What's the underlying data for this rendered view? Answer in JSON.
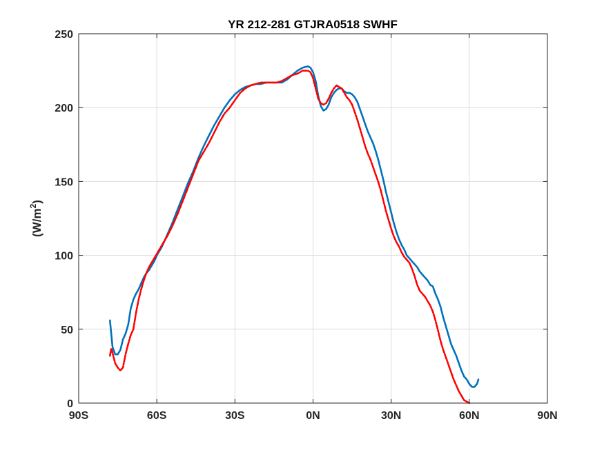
{
  "chart_data": {
    "type": "line",
    "title": "YR 212-281 GTJRA0518    SWHF",
    "xlabel": "",
    "ylabel_base": "(W/m",
    "ylabel_sup": "2",
    "ylabel_end": ")",
    "xlim": [
      -90,
      90
    ],
    "ylim": [
      0,
      250
    ],
    "xticks": [
      -90,
      -60,
      -30,
      0,
      30,
      60,
      90
    ],
    "xtick_labels": [
      "90S",
      "60S",
      "30S",
      "0N",
      "30N",
      "60N",
      "90N"
    ],
    "yticks": [
      0,
      50,
      100,
      150,
      200,
      250
    ],
    "ytick_labels": [
      "0",
      "50",
      "100",
      "150",
      "200",
      "250"
    ],
    "grid": true,
    "series": [
      {
        "color": "#0072BD",
        "style": "solid",
        "points": [
          [
            -78,
            56
          ],
          [
            -77,
            38
          ],
          [
            -76,
            33
          ],
          [
            -75,
            33
          ],
          [
            -74,
            36
          ],
          [
            -73,
            43
          ],
          [
            -72,
            47
          ],
          [
            -71,
            53
          ],
          [
            -70,
            64
          ],
          [
            -69,
            70
          ],
          [
            -68,
            74
          ],
          [
            -67,
            77
          ],
          [
            -66,
            81
          ],
          [
            -65,
            85
          ],
          [
            -64,
            88
          ],
          [
            -63,
            90
          ],
          [
            -62,
            93
          ],
          [
            -61,
            96
          ],
          [
            -60,
            100
          ],
          [
            -58,
            106
          ],
          [
            -56,
            114
          ],
          [
            -54,
            122
          ],
          [
            -52,
            131
          ],
          [
            -50,
            140
          ],
          [
            -48,
            149
          ],
          [
            -46,
            157
          ],
          [
            -44,
            166
          ],
          [
            -42,
            174
          ],
          [
            -40,
            181
          ],
          [
            -38,
            188
          ],
          [
            -36,
            194
          ],
          [
            -34,
            200
          ],
          [
            -32,
            205
          ],
          [
            -30,
            209
          ],
          [
            -28,
            212
          ],
          [
            -26,
            214
          ],
          [
            -24,
            215
          ],
          [
            -22,
            216
          ],
          [
            -20,
            216
          ],
          [
            -18,
            217
          ],
          [
            -16,
            217
          ],
          [
            -14,
            217
          ],
          [
            -12,
            217
          ],
          [
            -10,
            219
          ],
          [
            -8,
            222
          ],
          [
            -6,
            225
          ],
          [
            -4,
            227
          ],
          [
            -2,
            228
          ],
          [
            -1,
            227
          ],
          [
            0,
            224
          ],
          [
            1,
            218
          ],
          [
            2,
            208
          ],
          [
            3,
            201
          ],
          [
            4,
            198
          ],
          [
            5,
            199
          ],
          [
            6,
            202
          ],
          [
            7,
            207
          ],
          [
            8,
            210
          ],
          [
            9,
            212
          ],
          [
            10,
            213
          ],
          [
            11,
            213
          ],
          [
            12,
            211
          ],
          [
            13,
            210
          ],
          [
            14,
            210
          ],
          [
            15,
            209
          ],
          [
            16,
            207
          ],
          [
            17,
            204
          ],
          [
            18,
            199
          ],
          [
            19,
            194
          ],
          [
            20,
            189
          ],
          [
            21,
            184
          ],
          [
            22,
            180
          ],
          [
            23,
            176
          ],
          [
            24,
            171
          ],
          [
            25,
            165
          ],
          [
            26,
            158
          ],
          [
            27,
            151
          ],
          [
            28,
            143
          ],
          [
            29,
            136
          ],
          [
            30,
            129
          ],
          [
            31,
            122
          ],
          [
            32,
            116
          ],
          [
            33,
            111
          ],
          [
            34,
            107
          ],
          [
            35,
            104
          ],
          [
            36,
            100
          ],
          [
            37,
            98
          ],
          [
            38,
            96
          ],
          [
            39,
            94
          ],
          [
            40,
            92
          ],
          [
            41,
            89
          ],
          [
            42,
            87
          ],
          [
            43,
            85
          ],
          [
            44,
            83
          ],
          [
            45,
            80
          ],
          [
            46,
            79
          ],
          [
            47,
            74
          ],
          [
            48,
            70
          ],
          [
            49,
            65
          ],
          [
            50,
            58
          ],
          [
            51,
            52
          ],
          [
            52,
            46
          ],
          [
            53,
            40
          ],
          [
            54,
            36
          ],
          [
            55,
            32
          ],
          [
            56,
            27
          ],
          [
            57,
            22
          ],
          [
            58,
            18
          ],
          [
            59,
            16
          ],
          [
            60,
            13
          ],
          [
            61,
            11
          ],
          [
            62,
            11
          ],
          [
            63,
            13
          ],
          [
            63.5,
            16
          ]
        ]
      },
      {
        "color": "#FF0000",
        "style": "dashed",
        "points": [
          [
            -78,
            32
          ],
          [
            -77.5,
            37
          ],
          [
            -77,
            34
          ],
          [
            -76,
            27
          ],
          [
            -75,
            24
          ],
          [
            -74,
            22
          ],
          [
            -73,
            24
          ],
          [
            -72,
            33
          ],
          [
            -71,
            40
          ],
          [
            -70,
            46
          ],
          [
            -69,
            50
          ],
          [
            -68,
            61
          ],
          [
            -67,
            70
          ],
          [
            -66,
            77
          ],
          [
            -65,
            83
          ],
          [
            -64,
            88
          ],
          [
            -63,
            92
          ],
          [
            -62,
            95
          ],
          [
            -61,
            98
          ],
          [
            -60,
            101
          ],
          [
            -58,
            107
          ],
          [
            -56,
            113
          ],
          [
            -54,
            120
          ],
          [
            -52,
            128
          ],
          [
            -50,
            137
          ],
          [
            -48,
            146
          ],
          [
            -46,
            155
          ],
          [
            -44,
            164
          ],
          [
            -42,
            170
          ],
          [
            -40,
            176
          ],
          [
            -38,
            183
          ],
          [
            -36,
            190
          ],
          [
            -34,
            196
          ],
          [
            -32,
            200
          ],
          [
            -30,
            205
          ],
          [
            -28,
            210
          ],
          [
            -26,
            213
          ],
          [
            -24,
            215
          ],
          [
            -22,
            216
          ],
          [
            -20,
            217
          ],
          [
            -18,
            217
          ],
          [
            -16,
            217
          ],
          [
            -14,
            217
          ],
          [
            -12,
            218
          ],
          [
            -10,
            220
          ],
          [
            -8,
            222
          ],
          [
            -6,
            223
          ],
          [
            -4,
            225
          ],
          [
            -2,
            225
          ],
          [
            -1,
            224
          ],
          [
            0,
            220
          ],
          [
            1,
            213
          ],
          [
            2,
            206
          ],
          [
            3,
            203
          ],
          [
            4,
            202
          ],
          [
            5,
            203
          ],
          [
            6,
            206
          ],
          [
            7,
            210
          ],
          [
            8,
            213
          ],
          [
            9,
            215
          ],
          [
            10,
            214
          ],
          [
            11,
            213
          ],
          [
            12,
            210
          ],
          [
            13,
            207
          ],
          [
            14,
            205
          ],
          [
            15,
            202
          ],
          [
            16,
            197
          ],
          [
            17,
            192
          ],
          [
            18,
            186
          ],
          [
            19,
            180
          ],
          [
            20,
            174
          ],
          [
            21,
            169
          ],
          [
            22,
            165
          ],
          [
            23,
            160
          ],
          [
            24,
            155
          ],
          [
            25,
            150
          ],
          [
            26,
            144
          ],
          [
            27,
            137
          ],
          [
            28,
            130
          ],
          [
            29,
            124
          ],
          [
            30,
            118
          ],
          [
            31,
            113
          ],
          [
            32,
            109
          ],
          [
            33,
            106
          ],
          [
            34,
            102
          ],
          [
            35,
            99
          ],
          [
            36,
            97
          ],
          [
            37,
            95
          ],
          [
            38,
            91
          ],
          [
            39,
            86
          ],
          [
            40,
            80
          ],
          [
            41,
            76
          ],
          [
            42,
            74
          ],
          [
            43,
            72
          ],
          [
            44,
            69
          ],
          [
            45,
            66
          ],
          [
            46,
            62
          ],
          [
            47,
            56
          ],
          [
            48,
            49
          ],
          [
            49,
            42
          ],
          [
            50,
            36
          ],
          [
            51,
            31
          ],
          [
            52,
            26
          ],
          [
            53,
            21
          ],
          [
            54,
            16
          ],
          [
            55,
            12
          ],
          [
            56,
            8
          ],
          [
            57,
            5
          ],
          [
            58,
            2
          ],
          [
            59,
            1
          ],
          [
            60,
            0
          ]
        ]
      }
    ]
  }
}
